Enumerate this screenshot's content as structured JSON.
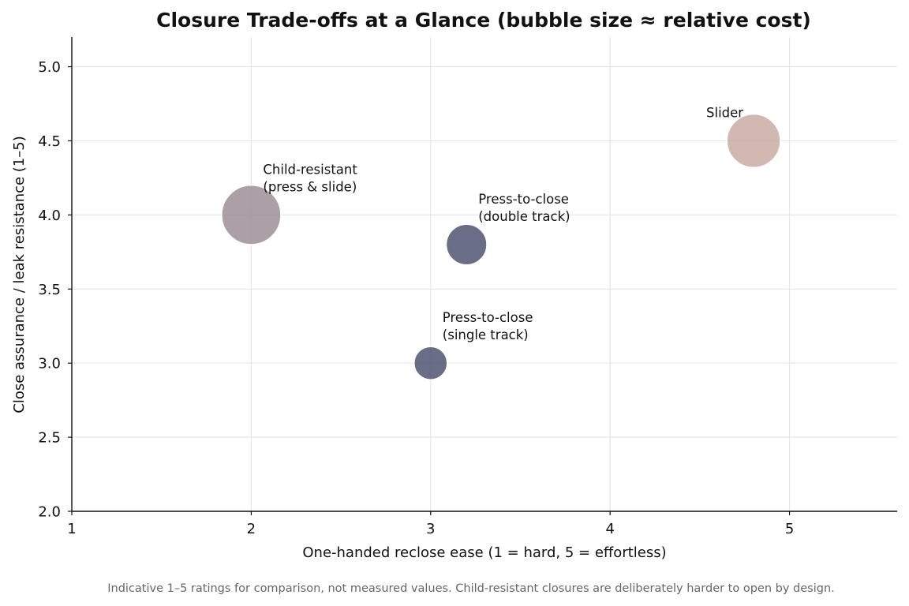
{
  "chart_data": {
    "type": "scatter",
    "title": "Closure Trade-offs at a Glance (bubble size ≈ relative cost)",
    "xlabel": "One-handed reclose ease  (1 = hard, 5 = effortless)",
    "ylabel": "Close assurance / leak resistance  (1–5)",
    "xlim": [
      1,
      5.6
    ],
    "ylim": [
      2.0,
      5.2
    ],
    "x_ticks": [
      1,
      2,
      3,
      4,
      5
    ],
    "x_tick_labels": [
      "1",
      "2",
      "3",
      "4",
      "5"
    ],
    "y_ticks": [
      2.0,
      2.5,
      3.0,
      3.5,
      4.0,
      4.5,
      5.0
    ],
    "y_tick_labels": [
      "2.0",
      "2.5",
      "3.0",
      "3.5",
      "4.0",
      "4.5",
      "5.0"
    ],
    "grid": true,
    "points": [
      {
        "label_lines": [
          "Press-to-close",
          "(single track)"
        ],
        "x": 3.0,
        "y": 3.0,
        "relative_cost": 1.0,
        "color": "#4f5370",
        "label_anchor": "upper-right"
      },
      {
        "label_lines": [
          "Press-to-close",
          "(double track)"
        ],
        "x": 3.2,
        "y": 3.8,
        "relative_cost": 1.5,
        "color": "#4f5370",
        "label_anchor": "upper-right"
      },
      {
        "label_lines": [
          "Child-resistant",
          "(press & slide)"
        ],
        "x": 2.0,
        "y": 4.0,
        "relative_cost": 3.2,
        "color": "#9e8e97",
        "label_anchor": "upper-right"
      },
      {
        "label_lines": [
          "Slider"
        ],
        "x": 4.8,
        "y": 4.5,
        "relative_cost": 2.6,
        "color": "#c9ada5",
        "label_anchor": "upper-left"
      }
    ],
    "footnote": "Indicative 1–5 ratings for comparison, not measured values. Child-resistant closures are deliberately harder to open by design."
  }
}
